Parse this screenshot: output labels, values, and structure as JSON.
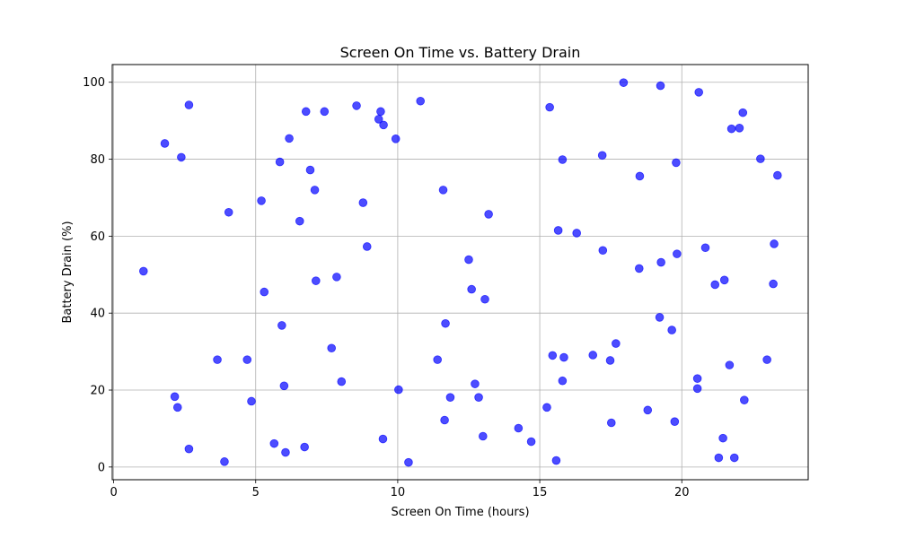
{
  "chart_data": {
    "type": "scatter",
    "title": "Screen On Time vs. Battery Drain",
    "xlabel": "Screen On Time (hours)",
    "ylabel": "Battery Drain (%)",
    "xlim": [
      -0.05,
      24.45
    ],
    "ylim": [
      -3.3,
      104.6
    ],
    "xticks": [
      0,
      5,
      10,
      15,
      20
    ],
    "yticks": [
      0,
      20,
      40,
      60,
      80,
      100
    ],
    "grid": true,
    "marker_color": "#0000ff",
    "marker_alpha": 0.7,
    "points": [
      [
        1.05,
        50.9
      ],
      [
        1.8,
        84.1
      ],
      [
        2.15,
        18.3
      ],
      [
        2.25,
        15.5
      ],
      [
        2.38,
        80.5
      ],
      [
        2.65,
        94.1
      ],
      [
        2.65,
        4.7
      ],
      [
        3.65,
        27.9
      ],
      [
        3.9,
        1.4
      ],
      [
        4.05,
        66.2
      ],
      [
        4.7,
        27.9
      ],
      [
        4.85,
        17.1
      ],
      [
        5.2,
        69.2
      ],
      [
        5.3,
        45.5
      ],
      [
        5.65,
        6.1
      ],
      [
        5.85,
        79.3
      ],
      [
        5.92,
        36.8
      ],
      [
        6.0,
        21.1
      ],
      [
        6.05,
        3.8
      ],
      [
        6.18,
        85.4
      ],
      [
        6.55,
        63.9
      ],
      [
        6.72,
        5.2
      ],
      [
        6.77,
        92.4
      ],
      [
        6.92,
        77.2
      ],
      [
        7.08,
        72.0
      ],
      [
        7.12,
        48.4
      ],
      [
        7.42,
        92.4
      ],
      [
        7.67,
        30.9
      ],
      [
        7.85,
        49.4
      ],
      [
        8.02,
        22.2
      ],
      [
        8.55,
        93.9
      ],
      [
        8.78,
        68.7
      ],
      [
        8.92,
        57.3
      ],
      [
        9.33,
        90.4
      ],
      [
        9.4,
        92.4
      ],
      [
        9.5,
        88.9
      ],
      [
        9.48,
        7.3
      ],
      [
        9.93,
        85.3
      ],
      [
        10.03,
        20.1
      ],
      [
        10.38,
        1.2
      ],
      [
        10.8,
        95.1
      ],
      [
        11.4,
        27.9
      ],
      [
        11.6,
        72.0
      ],
      [
        11.65,
        12.2
      ],
      [
        11.68,
        37.3
      ],
      [
        11.85,
        18.1
      ],
      [
        12.5,
        53.9
      ],
      [
        12.6,
        46.2
      ],
      [
        12.72,
        21.6
      ],
      [
        12.85,
        18.1
      ],
      [
        13.0,
        8.0
      ],
      [
        13.07,
        43.6
      ],
      [
        13.2,
        65.7
      ],
      [
        14.25,
        10.1
      ],
      [
        14.7,
        6.6
      ],
      [
        15.25,
        15.5
      ],
      [
        15.35,
        93.5
      ],
      [
        15.45,
        29.0
      ],
      [
        15.58,
        1.7
      ],
      [
        15.65,
        61.5
      ],
      [
        15.8,
        79.9
      ],
      [
        15.8,
        22.4
      ],
      [
        15.85,
        28.5
      ],
      [
        16.3,
        60.8
      ],
      [
        16.87,
        29.1
      ],
      [
        17.2,
        81.0
      ],
      [
        17.22,
        56.3
      ],
      [
        17.48,
        27.7
      ],
      [
        17.52,
        11.5
      ],
      [
        17.68,
        32.1
      ],
      [
        17.95,
        99.9
      ],
      [
        18.5,
        51.6
      ],
      [
        18.52,
        75.6
      ],
      [
        18.8,
        14.8
      ],
      [
        19.22,
        38.9
      ],
      [
        19.25,
        99.1
      ],
      [
        19.27,
        53.2
      ],
      [
        19.65,
        35.6
      ],
      [
        19.75,
        11.8
      ],
      [
        19.8,
        79.1
      ],
      [
        19.83,
        55.4
      ],
      [
        20.55,
        23.0
      ],
      [
        20.55,
        20.4
      ],
      [
        20.6,
        97.4
      ],
      [
        20.83,
        57.0
      ],
      [
        21.17,
        47.4
      ],
      [
        21.3,
        2.4
      ],
      [
        21.45,
        7.5
      ],
      [
        21.5,
        48.6
      ],
      [
        21.68,
        26.5
      ],
      [
        21.75,
        87.9
      ],
      [
        21.85,
        2.4
      ],
      [
        22.03,
        88.1
      ],
      [
        22.15,
        92.1
      ],
      [
        22.2,
        17.4
      ],
      [
        22.77,
        80.1
      ],
      [
        23.0,
        27.9
      ],
      [
        23.22,
        47.6
      ],
      [
        23.25,
        58.0
      ],
      [
        23.37,
        75.8
      ]
    ]
  }
}
